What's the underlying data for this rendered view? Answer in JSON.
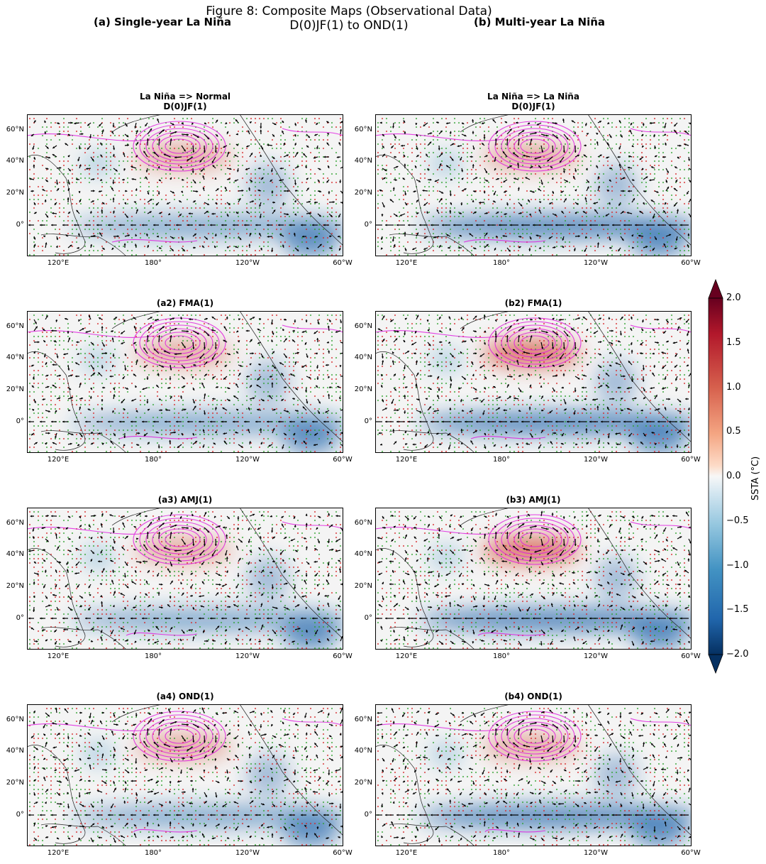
{
  "figure": {
    "title_line1": "Figure 8: Composite Maps (Observational Data)",
    "title_line2": "D(0)JF(1) to OND(1)",
    "col_a": "(a) Single-year La Niña",
    "col_b": "(b) Multi-year La Niña"
  },
  "panels": [
    {
      "id": "a1",
      "title": "La Niña => Normal",
      "subtitle": "D(0)JF(1)"
    },
    {
      "id": "b1",
      "title": "La Niña => La Niña",
      "subtitle": "D(0)JF(1)"
    },
    {
      "id": "a2",
      "title": "(a2) FMA(1)",
      "subtitle": ""
    },
    {
      "id": "b2",
      "title": "(b2) FMA(1)",
      "subtitle": ""
    },
    {
      "id": "a3",
      "title": "(a3) AMJ(1)",
      "subtitle": ""
    },
    {
      "id": "b3",
      "title": "(b3) AMJ(1)",
      "subtitle": ""
    },
    {
      "id": "a4",
      "title": "(a4) OND(1)",
      "subtitle": ""
    },
    {
      "id": "b4",
      "title": "(b4) OND(1)",
      "subtitle": ""
    }
  ],
  "chart_data": {
    "type": "heatmap",
    "layout": "4 rows x 2 columns of Pacific maps with SSTA shading, wind vectors, contours and stippling",
    "lat_ticks": [
      "60°N",
      "40°N",
      "20°N",
      "0°"
    ],
    "lon_ticks": [
      "120°E",
      "180°",
      "120°W",
      "60°W"
    ],
    "colorbar": {
      "label": "SSTA (°C)",
      "range": [
        -2.0,
        2.0
      ],
      "ticks": [
        "2.0",
        "1.5",
        "1.0",
        "0.5",
        "0.0",
        "−0.5",
        "−1.0",
        "−1.5",
        "−2.0"
      ],
      "colors": [
        "#67001f",
        "#b2182b",
        "#d6604d",
        "#f4a582",
        "#fddbc7",
        "#f7f7f7",
        "#d1e5f0",
        "#92c5de",
        "#4393c3",
        "#2166ac",
        "#053061"
      ]
    },
    "colors": {
      "warm": "#d6604d",
      "cold": "#2166ac",
      "contour": "#e020e0",
      "stipple_green": "#2ca02c",
      "stipple_red": "#d62728"
    }
  }
}
